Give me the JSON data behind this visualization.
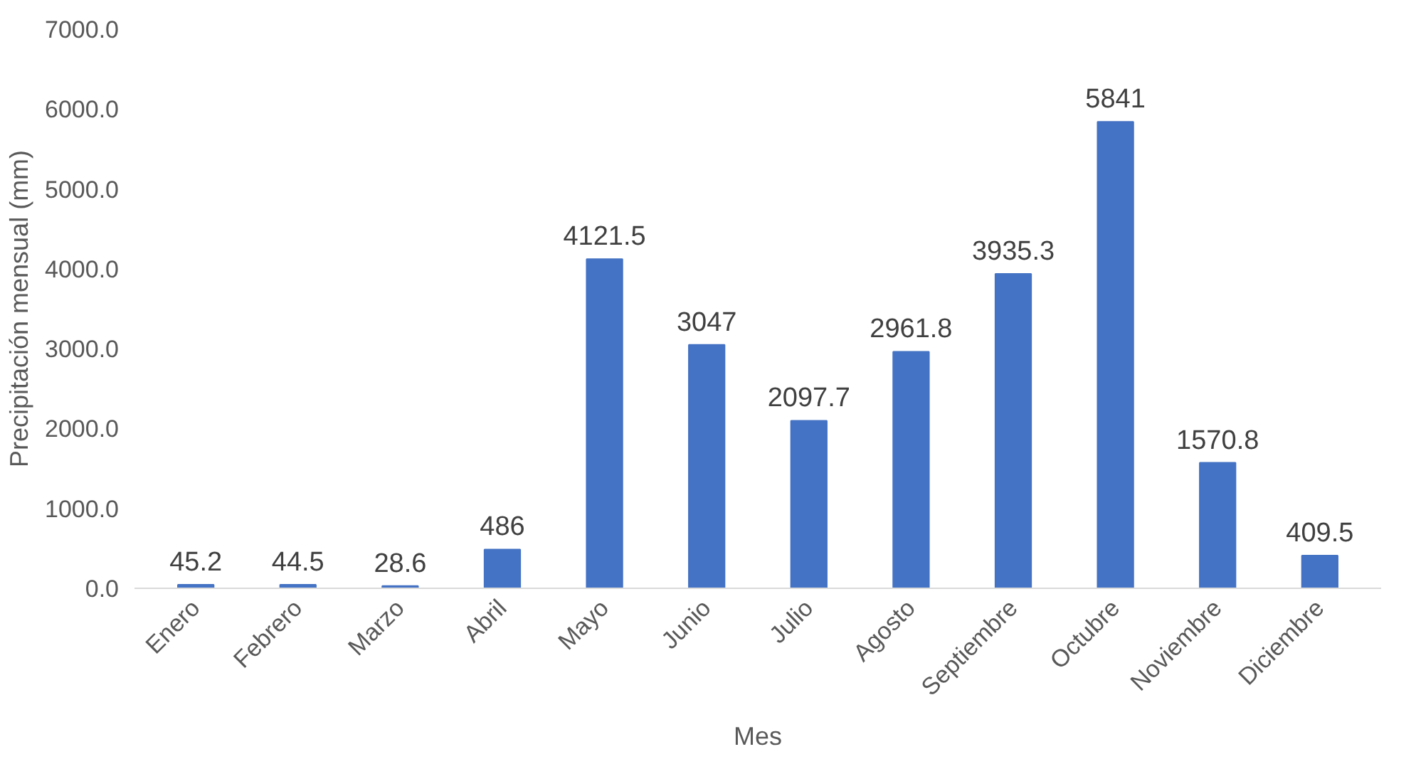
{
  "chart_data": {
    "type": "bar",
    "xlabel": "Mes",
    "ylabel": "Precipitación mensual (mm)",
    "categories": [
      "Enero",
      "Febrero",
      "Marzo",
      "Abril",
      "Mayo",
      "Junio",
      "Julio",
      "Agosto",
      "Septiembre",
      "Octubre",
      "Noviembre",
      "Diciembre"
    ],
    "values": [
      45.2,
      44.5,
      28.6,
      486,
      4121.5,
      3047,
      2097.7,
      2961.8,
      3935.3,
      5841,
      1570.8,
      409.5
    ],
    "color": "#4472c4",
    "data_labels": true,
    "grid": false,
    "ylim": [
      0,
      7000
    ],
    "yticks": [
      {
        "value": 0,
        "label": "0.0"
      },
      {
        "value": 1000,
        "label": "1000.0"
      },
      {
        "value": 2000,
        "label": "2000.0"
      },
      {
        "value": 3000,
        "label": "3000.0"
      },
      {
        "value": 4000,
        "label": "4000.0"
      },
      {
        "value": 5000,
        "label": "5000.0"
      },
      {
        "value": 6000,
        "label": "6000.0"
      },
      {
        "value": 7000,
        "label": "7000.0"
      }
    ]
  }
}
